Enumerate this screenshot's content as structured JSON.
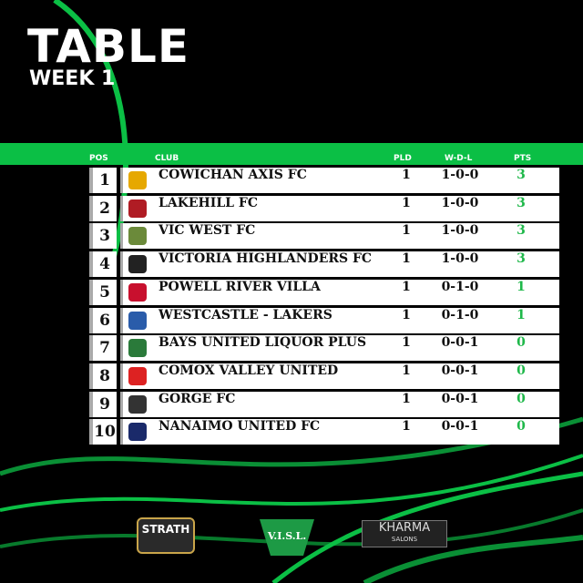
{
  "header": {
    "title": "TABLE",
    "subtitle": "WEEK 1"
  },
  "columns": {
    "pos": "POS",
    "club": "CLUB",
    "pld": "PLD",
    "wdl": "W-D-L",
    "pts": "PTS"
  },
  "rows": [
    {
      "pos": "1",
      "club": "COWICHAN AXIS FC",
      "pld": "1",
      "wdl": "1-0-0",
      "pts": "3",
      "crest": "#e6a800"
    },
    {
      "pos": "2",
      "club": "LAKEHILL FC",
      "pld": "1",
      "wdl": "1-0-0",
      "pts": "3",
      "crest": "#b01c24"
    },
    {
      "pos": "3",
      "club": "VIC WEST FC",
      "pld": "1",
      "wdl": "1-0-0",
      "pts": "3",
      "crest": "#6b8a3a"
    },
    {
      "pos": "4",
      "club": "VICTORIA HIGHLANDERS FC",
      "pld": "1",
      "wdl": "1-0-0",
      "pts": "3",
      "crest": "#222"
    },
    {
      "pos": "5",
      "club": "POWELL RIVER VILLA",
      "pld": "1",
      "wdl": "0-1-0",
      "pts": "1",
      "crest": "#c8102e"
    },
    {
      "pos": "6",
      "club": "WESTCASTLE - LAKERS",
      "pld": "1",
      "wdl": "0-1-0",
      "pts": "1",
      "crest": "#2a5caa"
    },
    {
      "pos": "7",
      "club": "BAYS UNITED LIQUOR PLUS",
      "pld": "1",
      "wdl": "0-0-1",
      "pts": "0",
      "crest": "#2a7a3a"
    },
    {
      "pos": "8",
      "club": "COMOX VALLEY UNITED",
      "pld": "1",
      "wdl": "0-0-1",
      "pts": "0",
      "crest": "#d22"
    },
    {
      "pos": "9",
      "club": "GORGE FC",
      "pld": "1",
      "wdl": "0-0-1",
      "pts": "0",
      "crest": "#333"
    },
    {
      "pos": "10",
      "club": "NANAIMO UNITED FC",
      "pld": "1",
      "wdl": "0-0-1",
      "pts": "0",
      "crest": "#1a2a6a"
    }
  ],
  "sponsors": {
    "strath": "STRATH",
    "visl": "V.I.S.L.",
    "kharma": "KHARMA",
    "kharma_sub": "SALONS"
  },
  "colors": {
    "accent": "#0bbf45",
    "points": "#1fb84a"
  }
}
